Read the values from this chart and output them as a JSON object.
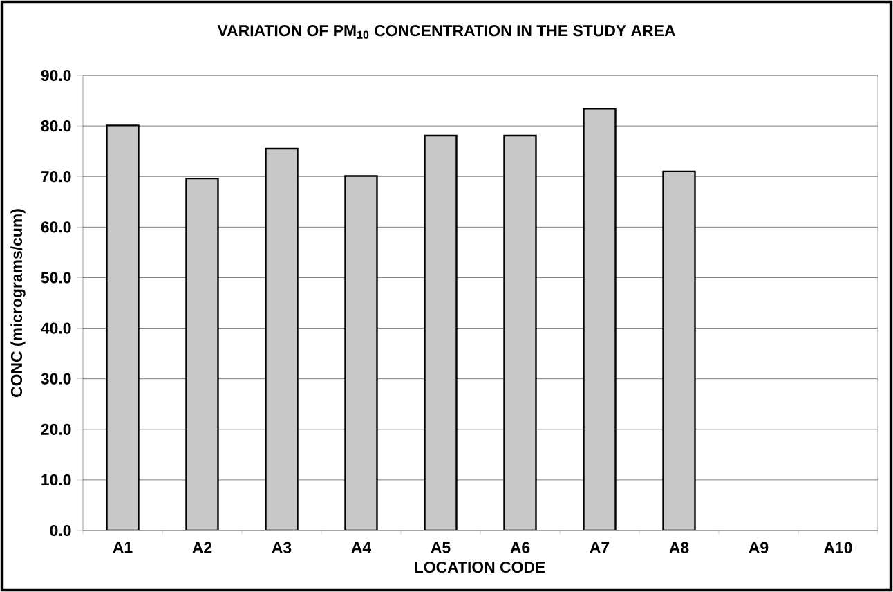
{
  "chart_data": {
    "type": "bar",
    "title": "VARIATION OF PM$_{10}$ CONCENTRATION IN THE STUDY AREA",
    "xlabel": "LOCATION CODE",
    "ylabel": "CONC (micrograms/cum)",
    "categories": [
      "A1",
      "A2",
      "A3",
      "A4",
      "A5",
      "A6",
      "A7",
      "A8",
      "A9",
      "A10"
    ],
    "values": [
      80.1,
      69.6,
      75.5,
      70.1,
      78.1,
      78.1,
      83.4,
      71.0,
      null,
      null
    ],
    "color": "#c8c8c8",
    "ylim": [
      0,
      90
    ],
    "yticks": [
      {
        "value": 0,
        "label": "0.0"
      },
      {
        "value": 10,
        "label": "10.0"
      },
      {
        "value": 20,
        "label": "20.0"
      },
      {
        "value": 30,
        "label": "30.0"
      },
      {
        "value": 40,
        "label": "40.0"
      },
      {
        "value": 50,
        "label": "50.0"
      },
      {
        "value": 60,
        "label": "60.0"
      },
      {
        "value": 70,
        "label": "70.0"
      },
      {
        "value": 80,
        "label": "80.0"
      },
      {
        "value": 90,
        "label": "90.0"
      }
    ],
    "grid": "y"
  }
}
